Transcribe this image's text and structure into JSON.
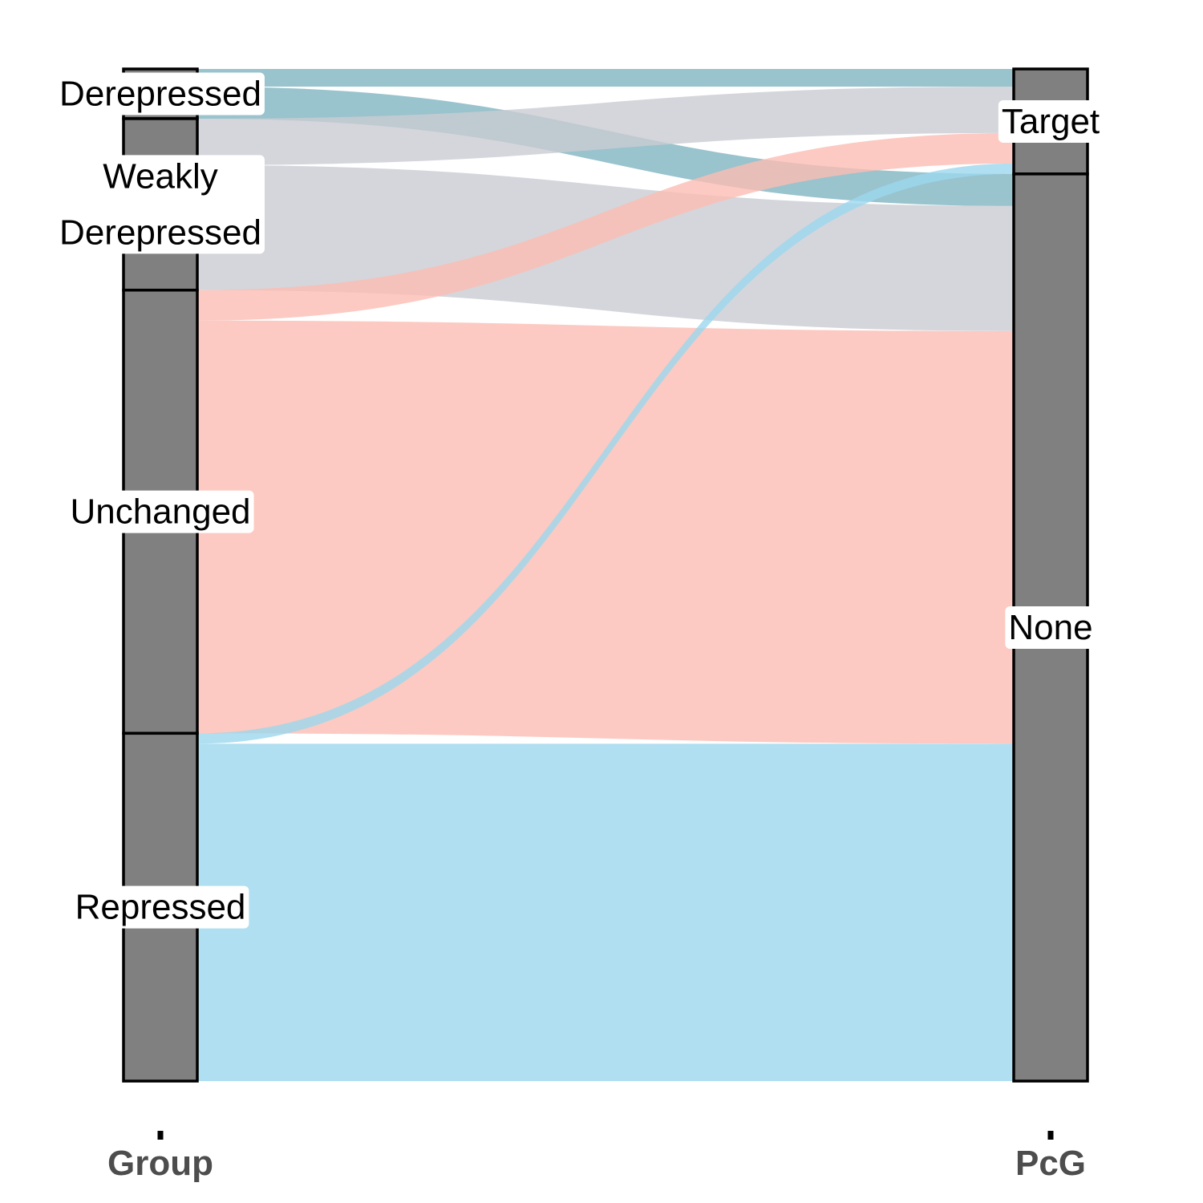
{
  "chart_data": {
    "type": "alluvial",
    "axes": [
      {
        "name": "Group",
        "strata": [
          "Derepressed",
          "Weakly\nDerepressed",
          "Unchanged",
          "Repressed"
        ]
      },
      {
        "name": "PcG",
        "strata": [
          "Target",
          "None"
        ]
      }
    ],
    "flows": [
      {
        "from": "Derepressed",
        "to": "Target",
        "value": 22,
        "color": "#7fb4c1"
      },
      {
        "from": "Derepressed",
        "to": "None",
        "value": 40,
        "color": "#7fb4c1"
      },
      {
        "from": "Weakly\nDerepressed",
        "to": "Target",
        "value": 58,
        "color": "#c9ccd2"
      },
      {
        "from": "Weakly\nDerepressed",
        "to": "None",
        "value": 156,
        "color": "#c9ccd2"
      },
      {
        "from": "Unchanged",
        "to": "Target",
        "value": 38,
        "color": "#fbbdb3"
      },
      {
        "from": "Unchanged",
        "to": "None",
        "value": 515,
        "color": "#fbbdb3"
      },
      {
        "from": "Repressed",
        "to": "Target",
        "value": 13,
        "color": "#9bd7ee"
      },
      {
        "from": "Repressed",
        "to": "None",
        "value": 421,
        "color": "#9bd7ee"
      }
    ],
    "node_fill": "#808080",
    "xlabel": "",
    "ylabel": ""
  }
}
